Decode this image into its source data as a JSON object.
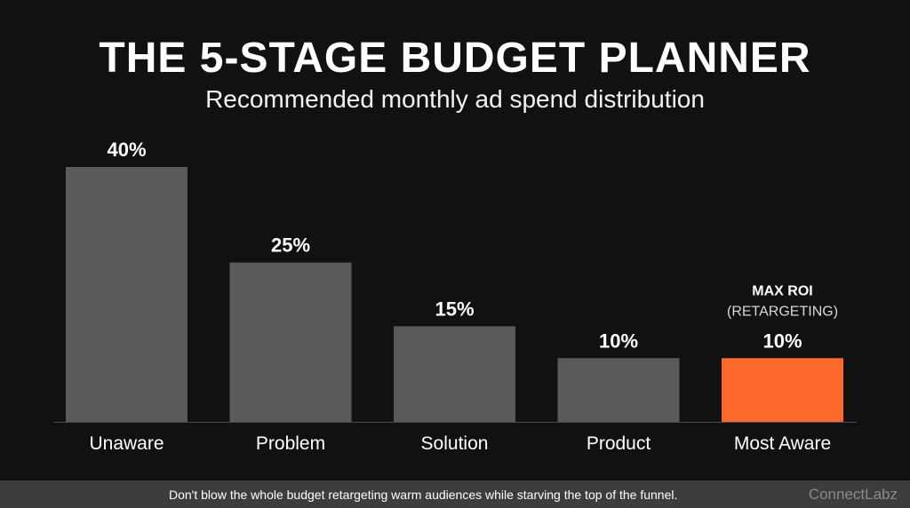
{
  "chart_data": {
    "type": "bar",
    "title": "THE 5-STAGE BUDGET PLANNER",
    "subtitle": "Recommended monthly ad spend distribution",
    "categories": [
      "Unaware",
      "Problem",
      "Solution",
      "Product",
      "Most Aware"
    ],
    "values": [
      40,
      25,
      15,
      10,
      10
    ],
    "value_labels": [
      "40%",
      "25%",
      "15%",
      "10%",
      "10%"
    ],
    "ylim": [
      0,
      40
    ],
    "grid": false,
    "highlight_index": 4,
    "annotation": {
      "title": "MAX ROI",
      "detail": "(RETARGETING)"
    },
    "colors": {
      "bar": "#5a5a5a",
      "highlight": "#ff6a2c",
      "baseline": "#4a4a4a"
    }
  },
  "footer": {
    "note": "Don't blow the whole budget retargeting warm audiences while starving the top of the funnel.",
    "brand": "ConnectLabz"
  }
}
